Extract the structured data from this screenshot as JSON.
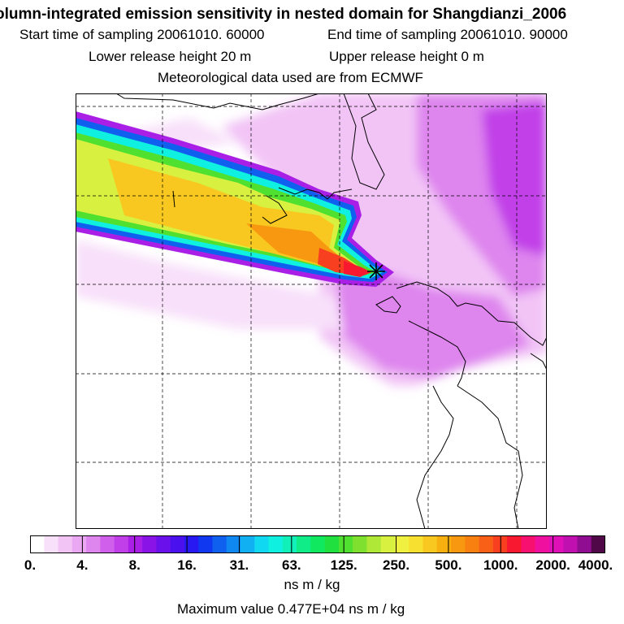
{
  "header": {
    "title": "olumn-integrated emission sensitivity in nested domain for Shangdianzi_2006",
    "start_label": "Start time of sampling 20061010. 60000",
    "end_label": "End time of sampling 20061010. 90000",
    "lower_label": "Lower release height   20 m",
    "upper_label": "Upper release height    0 m",
    "met_label": "Meteorological data used are from ECMWF"
  },
  "colorbar": {
    "tick_labels": [
      "0.",
      "4.",
      "8.",
      "16.",
      "31.",
      "63.",
      "125.",
      "250.",
      "500.",
      "1000.",
      "2000.",
      "4000."
    ],
    "units": "ns m / kg",
    "colors": [
      "#ffffff",
      "#f8e0fa",
      "#f2c4f6",
      "#eaa8f2",
      "#de85ee",
      "#d060ec",
      "#c13fe8",
      "#aa1fe6",
      "#8a14e8",
      "#6a10ea",
      "#4a10ee",
      "#2818f2",
      "#1038f0",
      "#1060f0",
      "#1088f2",
      "#10b0f2",
      "#10d8f0",
      "#10f0e0",
      "#10f0b8",
      "#10ec88",
      "#10e860",
      "#20e040",
      "#50e030",
      "#80e030",
      "#b0e838",
      "#d8f040",
      "#f0f040",
      "#f8e030",
      "#f8c820",
      "#f8b010",
      "#f89810",
      "#f88010",
      "#f86018",
      "#f84020",
      "#f81830",
      "#f81070",
      "#f010a0",
      "#e010b8",
      "#c010b0",
      "#900c90",
      "#500848"
    ]
  },
  "max_value": "Maximum value  0.477E+04 ns m / kg",
  "map": {
    "receptor_marker": "receptor-cross-icon",
    "plume_colors": {
      "outer": "#aa1fe6",
      "blue": "#1060f0",
      "cyan": "#10f0e0",
      "green": "#50e030",
      "yellow": "#d8f040",
      "orange": "#f8c820",
      "peak": "#f81830"
    }
  }
}
